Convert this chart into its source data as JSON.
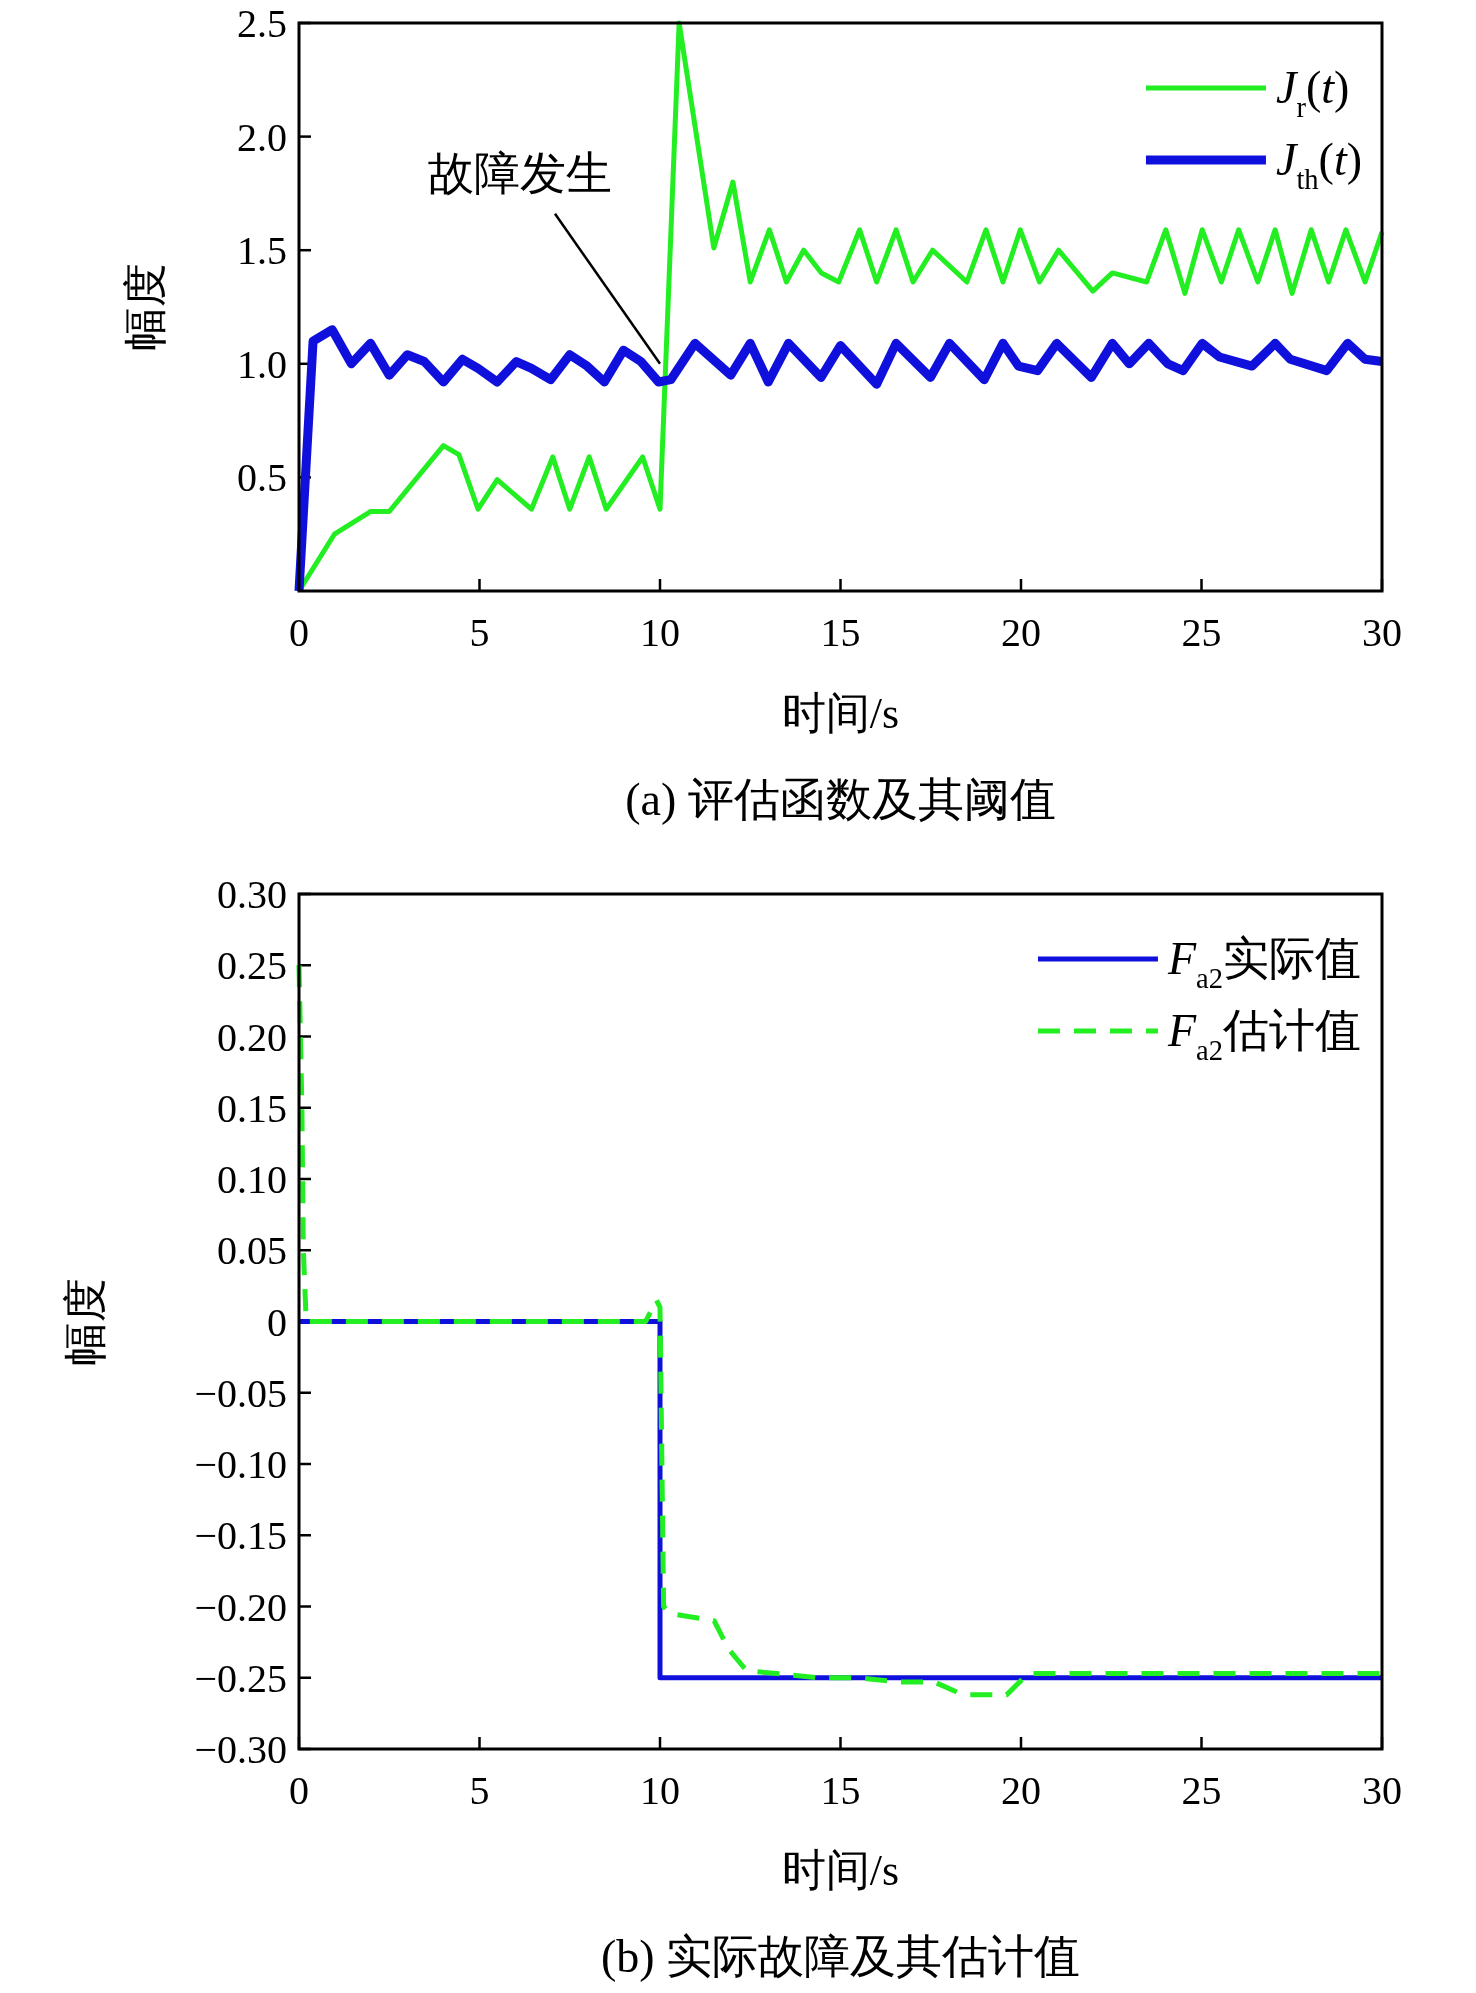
{
  "chart_data": [
    {
      "type": "line",
      "title": "(a) 评估函数及其阈值",
      "xlabel": "时间/s",
      "ylabel": "幅度",
      "xlim": [
        0,
        30
      ],
      "ylim": [
        0,
        2.5
      ],
      "xticks": [
        0,
        5,
        10,
        15,
        20,
        25,
        30
      ],
      "yticks": [
        0.5,
        {
          "value": 1,
          "label": "1.0"
        },
        1.5,
        {
          "value": 2,
          "label": "2.0"
        },
        2.5
      ],
      "legend": "top right",
      "annotations": [
        {
          "text": "故障发生",
          "x": 10,
          "y": 1.0
        }
      ],
      "series": [
        {
          "name": "*J*$_{r}$(*t*)",
          "color": "#22ee22",
          "line_style": "solid",
          "x": [
            0,
            0.98,
            1.99,
            2.5,
            4.0,
            4.43,
            4.96,
            5.49,
            6.44,
            7.03,
            7.5,
            8.04,
            8.51,
            9.52,
            10.0,
            10.53,
            11.49,
            12.02,
            12.5,
            13.03,
            13.5,
            13.98,
            14.47,
            14.95,
            15.53,
            16.0,
            16.54,
            17.01,
            17.55,
            18.5,
            19.03,
            19.5,
            19.98,
            20.51,
            21.04,
            21.99,
            22.53,
            23.48,
            24.01,
            24.54,
            25.02,
            25.55,
            26.03,
            26.56,
            27.04,
            27.51,
            28.04,
            28.52,
            29.0,
            29.53,
            30
          ],
          "values": [
            0,
            0.25,
            0.35,
            0.35,
            0.64,
            0.6,
            0.36,
            0.49,
            0.36,
            0.59,
            0.36,
            0.59,
            0.36,
            0.59,
            0.36,
            2.5,
            1.51,
            1.8,
            1.36,
            1.59,
            1.36,
            1.5,
            1.4,
            1.36,
            1.59,
            1.36,
            1.59,
            1.36,
            1.5,
            1.36,
            1.59,
            1.36,
            1.59,
            1.36,
            1.5,
            1.32,
            1.4,
            1.36,
            1.59,
            1.31,
            1.59,
            1.36,
            1.59,
            1.36,
            1.59,
            1.31,
            1.59,
            1.36,
            1.59,
            1.36,
            1.58
          ]
        },
        {
          "name": "*J*$_{th}$(*t*)",
          "color": "#1010dd",
          "line_style": "solid",
          "x": [
            0,
            0.39,
            0.92,
            1.45,
            1.98,
            2.5,
            3.0,
            3.47,
            4.0,
            4.53,
            4.96,
            5.49,
            6.02,
            6.44,
            6.97,
            7.5,
            7.98,
            8.46,
            8.99,
            9.47,
            9.96,
            10.3,
            10.97,
            11.96,
            12.5,
            13.0,
            13.56,
            14.46,
            15.0,
            16.0,
            16.54,
            17.49,
            18.02,
            18.98,
            19.5,
            19.93,
            20.46,
            20.99,
            21.95,
            22.53,
            23.0,
            23.54,
            24.07,
            24.49,
            25.02,
            25.5,
            26.4,
            27.04,
            27.46,
            28.47,
            29.05,
            29.53,
            30
          ],
          "values": [
            0,
            1.1,
            1.15,
            1.0,
            1.09,
            0.95,
            1.04,
            1.01,
            0.92,
            1.02,
            0.98,
            0.92,
            1.01,
            0.98,
            0.93,
            1.04,
            0.99,
            0.92,
            1.06,
            1.01,
            0.92,
            0.93,
            1.09,
            0.95,
            1.09,
            0.92,
            1.09,
            0.94,
            1.08,
            0.91,
            1.09,
            0.94,
            1.09,
            0.93,
            1.09,
            0.99,
            0.97,
            1.09,
            0.94,
            1.09,
            1.0,
            1.09,
            1.0,
            0.97,
            1.09,
            1.03,
            0.99,
            1.09,
            1.02,
            0.97,
            1.09,
            1.02,
            1.01
          ]
        }
      ]
    },
    {
      "type": "line",
      "title": "(b) 实际故障及其估计值",
      "xlabel": "时间/s",
      "ylabel": "幅度",
      "xlim": [
        0,
        30
      ],
      "ylim": [
        -0.3,
        0.3
      ],
      "xticks": [
        0,
        5,
        10,
        15,
        20,
        25,
        30
      ],
      "yticks": [
        {
          "value": -0.3,
          "label": "−0.30"
        },
        {
          "value": -0.25,
          "label": "−0.25"
        },
        {
          "value": -0.2,
          "label": "−0.20"
        },
        {
          "value": -0.15,
          "label": "−0.15"
        },
        {
          "value": -0.1,
          "label": "−0.10"
        },
        {
          "value": -0.05,
          "label": "−0.05"
        },
        0,
        {
          "value": 0.05,
          "label": "0.05"
        },
        {
          "value": 0.1,
          "label": "0.10"
        },
        {
          "value": 0.15,
          "label": "0.15"
        },
        {
          "value": 0.2,
          "label": "0.20"
        },
        {
          "value": 0.25,
          "label": "0.25"
        },
        {
          "value": 0.3,
          "label": "0.30"
        }
      ],
      "legend": "top right",
      "series": [
        {
          "name": "*F*$_{a2}$实际值",
          "color": "#1010dd",
          "line_style": "solid",
          "x": [
            0,
            10,
            10,
            30
          ],
          "values": [
            0,
            0,
            -0.25,
            -0.25
          ]
        },
        {
          "name": "*F*$_{a2}$估计值",
          "color": "#22ee22",
          "line_style": "dashed",
          "x": [
            0,
            0.08,
            0.12,
            0.2,
            9.6,
            9.9,
            10.0,
            10.1,
            10.28,
            11.5,
            11.9,
            12.4,
            14.4,
            15.5,
            16.6,
            17.6,
            18.4,
            19.6,
            20.2,
            30
          ],
          "values": [
            0.25,
            0.15,
            0.05,
            0,
            0,
            0.015,
            0.01,
            -0.2,
            -0.205,
            -0.21,
            -0.23,
            -0.245,
            -0.25,
            -0.25,
            -0.253,
            -0.253,
            -0.262,
            -0.262,
            -0.247,
            -0.247
          ]
        }
      ]
    }
  ]
}
